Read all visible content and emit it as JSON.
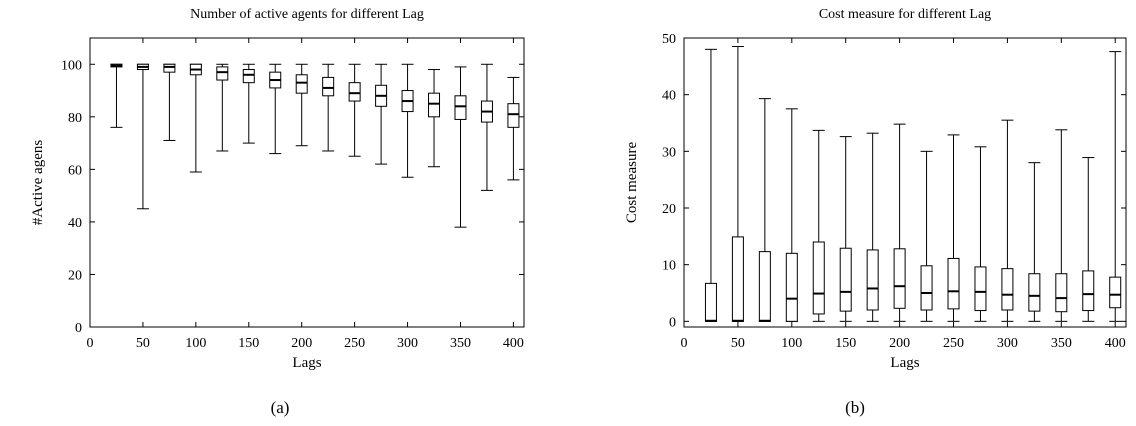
{
  "chart_data": [
    {
      "type": "box",
      "title": "Number of active agents for different Lag",
      "xlabel": "Lags",
      "ylabel": "#Active agens",
      "caption": "(a)",
      "xlim": [
        0,
        410
      ],
      "ylim": [
        0,
        110
      ],
      "xticks": [
        0,
        50,
        100,
        150,
        200,
        250,
        300,
        350,
        400
      ],
      "yticks": [
        0,
        20,
        40,
        60,
        80,
        100
      ],
      "x": [
        25,
        50,
        75,
        100,
        125,
        150,
        175,
        200,
        225,
        250,
        275,
        300,
        325,
        350,
        375,
        400
      ],
      "boxes": [
        {
          "min": 76,
          "q1": 99,
          "median": 99.5,
          "q3": 100,
          "max": 100
        },
        {
          "min": 45,
          "q1": 98,
          "median": 99,
          "q3": 100,
          "max": 100
        },
        {
          "min": 71,
          "q1": 97,
          "median": 99,
          "q3": 100,
          "max": 100
        },
        {
          "min": 59,
          "q1": 96,
          "median": 98,
          "q3": 100,
          "max": 100
        },
        {
          "min": 67,
          "q1": 94,
          "median": 97,
          "q3": 99,
          "max": 100
        },
        {
          "min": 70,
          "q1": 93,
          "median": 96,
          "q3": 98,
          "max": 100
        },
        {
          "min": 66,
          "q1": 91,
          "median": 94,
          "q3": 97,
          "max": 100
        },
        {
          "min": 69,
          "q1": 89,
          "median": 93,
          "q3": 96,
          "max": 100
        },
        {
          "min": 67,
          "q1": 88,
          "median": 91,
          "q3": 95,
          "max": 100
        },
        {
          "min": 65,
          "q1": 86,
          "median": 89,
          "q3": 93,
          "max": 100
        },
        {
          "min": 62,
          "q1": 84,
          "median": 88,
          "q3": 92,
          "max": 100
        },
        {
          "min": 57,
          "q1": 82,
          "median": 86,
          "q3": 90,
          "max": 100
        },
        {
          "min": 61,
          "q1": 80,
          "median": 85,
          "q3": 89,
          "max": 98
        },
        {
          "min": 38,
          "q1": 79,
          "median": 84,
          "q3": 88,
          "max": 99
        },
        {
          "min": 52,
          "q1": 78,
          "median": 82,
          "q3": 86,
          "max": 100
        },
        {
          "min": 56,
          "q1": 76,
          "median": 81,
          "q3": 85,
          "max": 95
        }
      ]
    },
    {
      "type": "box",
      "title": "Cost measure for different Lag",
      "xlabel": "Lags",
      "ylabel": "Cost measure",
      "caption": "(b)",
      "xlim": [
        0,
        410
      ],
      "ylim": [
        -1,
        50
      ],
      "xticks": [
        0,
        50,
        100,
        150,
        200,
        250,
        300,
        350,
        400
      ],
      "yticks": [
        0,
        10,
        20,
        30,
        40,
        50
      ],
      "x": [
        25,
        50,
        75,
        100,
        125,
        150,
        175,
        200,
        225,
        250,
        275,
        300,
        325,
        350,
        375,
        400
      ],
      "boxes": [
        {
          "min": 0,
          "q1": 0,
          "median": 0.1,
          "q3": 6.7,
          "max": 48
        },
        {
          "min": 0,
          "q1": 0,
          "median": 0.1,
          "q3": 14.9,
          "max": 48.5
        },
        {
          "min": 0,
          "q1": 0,
          "median": 0.1,
          "q3": 12.3,
          "max": 39.3
        },
        {
          "min": 0,
          "q1": 0,
          "median": 4.0,
          "q3": 12.0,
          "max": 37.5
        },
        {
          "min": 0,
          "q1": 1.3,
          "median": 4.9,
          "q3": 14.0,
          "max": 33.7
        },
        {
          "min": 0,
          "q1": 1.8,
          "median": 5.2,
          "q3": 12.9,
          "max": 32.6
        },
        {
          "min": 0,
          "q1": 2.0,
          "median": 5.8,
          "q3": 12.6,
          "max": 33.2
        },
        {
          "min": 0,
          "q1": 2.3,
          "median": 6.2,
          "q3": 12.8,
          "max": 34.8
        },
        {
          "min": 0,
          "q1": 2.0,
          "median": 5.0,
          "q3": 9.8,
          "max": 30.0
        },
        {
          "min": 0,
          "q1": 2.2,
          "median": 5.3,
          "q3": 11.1,
          "max": 32.9
        },
        {
          "min": 0,
          "q1": 1.9,
          "median": 5.2,
          "q3": 9.6,
          "max": 30.8
        },
        {
          "min": 0,
          "q1": 2.0,
          "median": 4.7,
          "q3": 9.3,
          "max": 35.5
        },
        {
          "min": 0,
          "q1": 1.8,
          "median": 4.5,
          "q3": 8.4,
          "max": 28.0
        },
        {
          "min": 0,
          "q1": 1.7,
          "median": 4.1,
          "q3": 8.4,
          "max": 33.8
        },
        {
          "min": 0,
          "q1": 1.9,
          "median": 4.8,
          "q3": 8.9,
          "max": 28.9
        },
        {
          "min": 0,
          "q1": 2.4,
          "median": 4.7,
          "q3": 7.8,
          "max": 47.6
        }
      ]
    }
  ]
}
